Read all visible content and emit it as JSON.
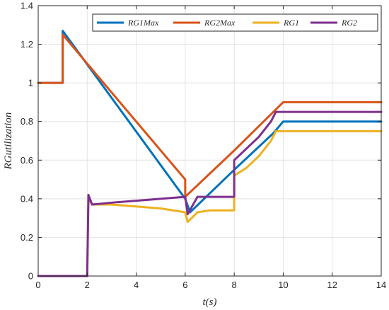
{
  "chart_data": {
    "type": "line",
    "title": "",
    "xlabel": "t(s)",
    "ylabel": "RGutilization",
    "xlim": [
      0,
      14
    ],
    "ylim": [
      0,
      1.4
    ],
    "xticks": [
      0,
      2,
      4,
      6,
      8,
      10,
      12,
      14
    ],
    "yticks": [
      0,
      0.2,
      0.4,
      0.6,
      0.8,
      1,
      1.2,
      1.4
    ],
    "xtick_labels": [
      "0",
      "2",
      "4",
      "6",
      "8",
      "10",
      "12",
      "14"
    ],
    "ytick_labels": [
      "0",
      "0.2",
      "0.4",
      "0.6",
      "0.8",
      "1",
      "1.2",
      "1.4"
    ],
    "grid": true,
    "legend_position": "top-right",
    "series": [
      {
        "name": "RG1Max",
        "color": "#0072BD",
        "x": [
          0,
          1,
          1,
          6,
          6.2,
          8,
          9.6,
          10,
          14
        ],
        "y": [
          1.0,
          1.0,
          1.27,
          0.4,
          0.33,
          0.55,
          0.74,
          0.8,
          0.8
        ]
      },
      {
        "name": "RG2Max",
        "color": "#D95319",
        "x": [
          0,
          1,
          1,
          6,
          6,
          8,
          9.6,
          10,
          14
        ],
        "y": [
          1.0,
          1.0,
          1.25,
          0.5,
          0.41,
          0.65,
          0.85,
          0.9,
          0.9
        ]
      },
      {
        "name": "RG1",
        "color": "#EDB120",
        "x": [
          0,
          2,
          2.05,
          2.2,
          3,
          4,
          5,
          6,
          6.1,
          6.5,
          7,
          7.5,
          8,
          8,
          8.5,
          9,
          9.5,
          9.7,
          14
        ],
        "y": [
          0,
          0,
          0.4,
          0.37,
          0.37,
          0.36,
          0.35,
          0.33,
          0.28,
          0.33,
          0.34,
          0.34,
          0.34,
          0.52,
          0.56,
          0.62,
          0.7,
          0.75,
          0.75
        ]
      },
      {
        "name": "RG2",
        "color": "#7E2F8E",
        "x": [
          0,
          2,
          2.05,
          2.2,
          3,
          4,
          5,
          6,
          6.1,
          6.5,
          7,
          7.5,
          8,
          8,
          8.5,
          9,
          9.5,
          9.7,
          14
        ],
        "y": [
          0,
          0,
          0.42,
          0.37,
          0.38,
          0.39,
          0.4,
          0.41,
          0.32,
          0.41,
          0.41,
          0.41,
          0.41,
          0.6,
          0.66,
          0.72,
          0.8,
          0.85,
          0.85
        ]
      }
    ]
  }
}
